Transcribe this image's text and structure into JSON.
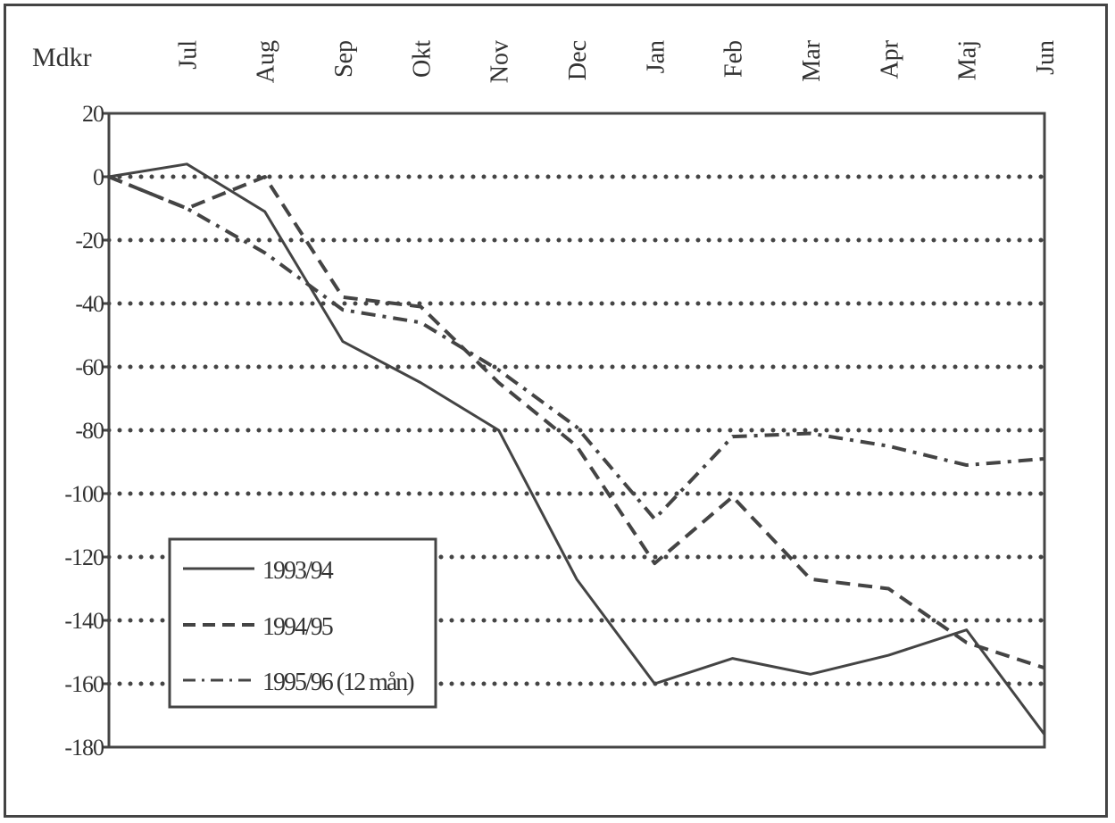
{
  "chart_data": {
    "type": "line",
    "ylabel": "Mdkr",
    "categories": [
      "",
      "Jul",
      "Aug",
      "Sep",
      "Okt",
      "Nov",
      "Dec",
      "Jan",
      "Feb",
      "Mar",
      "Apr",
      "Maj",
      "Jun"
    ],
    "month_labels": [
      "Jul",
      "Aug",
      "Sep",
      "Okt",
      "Nov",
      "Dec",
      "Jan",
      "Feb",
      "Mar",
      "Apr",
      "Maj",
      "Jun"
    ],
    "ylim": [
      -180,
      20
    ],
    "yticks": [
      "20",
      "0",
      "-20",
      "-40",
      "-60",
      "-80",
      "-100",
      "-120",
      "-140",
      "-160",
      "-180"
    ],
    "ytick_values": [
      20,
      0,
      -20,
      -40,
      -60,
      -80,
      -100,
      -120,
      -140,
      -160,
      -180
    ],
    "grid": "dotted horizontal",
    "legend_position": "bottom-left",
    "series": [
      {
        "name": "1993/94",
        "style": "solid",
        "values": [
          0,
          4,
          -11,
          -52,
          -65,
          -80,
          -127,
          -160,
          -152,
          -157,
          -151,
          -143,
          -176
        ]
      },
      {
        "name": "1994/95",
        "style": "dashed",
        "values": [
          0,
          -10,
          0,
          -38,
          -41,
          -65,
          -85,
          -122,
          -101,
          -127,
          -130,
          -147,
          -155
        ]
      },
      {
        "name": "1995/96 (12 mån)",
        "style": "dashdot",
        "values": [
          0,
          -10,
          -24,
          -42,
          -46,
          -61,
          -79,
          -108,
          -82,
          -81,
          -85,
          -91,
          -89
        ]
      }
    ]
  }
}
